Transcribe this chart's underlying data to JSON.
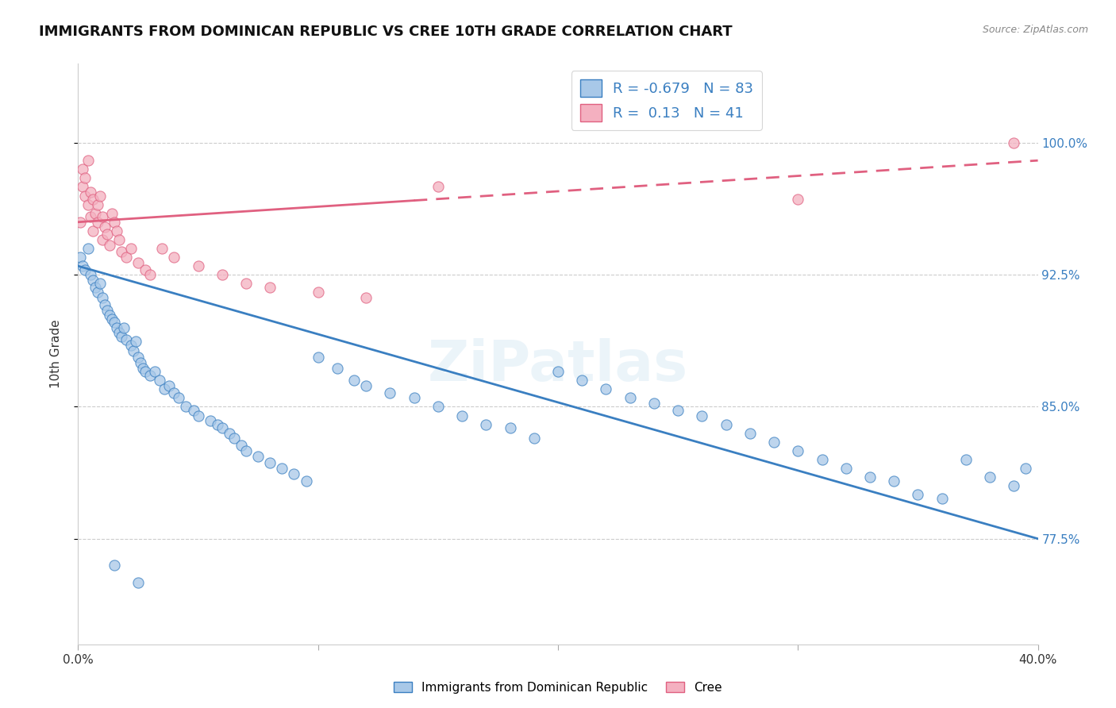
{
  "title": "IMMIGRANTS FROM DOMINICAN REPUBLIC VS CREE 10TH GRADE CORRELATION CHART",
  "source": "Source: ZipAtlas.com",
  "ylabel": "10th Grade",
  "watermark": "ZiPatlas",
  "blue_r": -0.679,
  "blue_n": 83,
  "pink_r": 0.13,
  "pink_n": 41,
  "blue_color": "#a8c8e8",
  "pink_color": "#f4b0c0",
  "blue_line_color": "#3a7fc1",
  "pink_line_color": "#e06080",
  "ytick_labels": [
    "77.5%",
    "85.0%",
    "92.5%",
    "100.0%"
  ],
  "ytick_values": [
    0.775,
    0.85,
    0.925,
    1.0
  ],
  "xlim": [
    0.0,
    0.4
  ],
  "ylim": [
    0.715,
    1.045
  ],
  "blue_scatter_x": [
    0.001,
    0.002,
    0.003,
    0.004,
    0.005,
    0.006,
    0.007,
    0.008,
    0.009,
    0.01,
    0.011,
    0.012,
    0.013,
    0.014,
    0.015,
    0.016,
    0.017,
    0.018,
    0.019,
    0.02,
    0.022,
    0.023,
    0.024,
    0.025,
    0.026,
    0.027,
    0.028,
    0.03,
    0.032,
    0.034,
    0.036,
    0.038,
    0.04,
    0.042,
    0.045,
    0.048,
    0.05,
    0.055,
    0.058,
    0.06,
    0.063,
    0.065,
    0.068,
    0.07,
    0.075,
    0.08,
    0.085,
    0.09,
    0.095,
    0.1,
    0.108,
    0.115,
    0.12,
    0.13,
    0.14,
    0.15,
    0.16,
    0.17,
    0.18,
    0.19,
    0.2,
    0.21,
    0.22,
    0.23,
    0.24,
    0.25,
    0.26,
    0.27,
    0.28,
    0.29,
    0.3,
    0.31,
    0.32,
    0.33,
    0.34,
    0.35,
    0.36,
    0.37,
    0.38,
    0.39,
    0.395,
    0.015,
    0.025
  ],
  "blue_scatter_y": [
    0.935,
    0.93,
    0.928,
    0.94,
    0.925,
    0.922,
    0.918,
    0.915,
    0.92,
    0.912,
    0.908,
    0.905,
    0.902,
    0.9,
    0.898,
    0.895,
    0.892,
    0.89,
    0.895,
    0.888,
    0.885,
    0.882,
    0.887,
    0.878,
    0.875,
    0.872,
    0.87,
    0.868,
    0.87,
    0.865,
    0.86,
    0.862,
    0.858,
    0.855,
    0.85,
    0.848,
    0.845,
    0.842,
    0.84,
    0.838,
    0.835,
    0.832,
    0.828,
    0.825,
    0.822,
    0.818,
    0.815,
    0.812,
    0.808,
    0.878,
    0.872,
    0.865,
    0.862,
    0.858,
    0.855,
    0.85,
    0.845,
    0.84,
    0.838,
    0.832,
    0.87,
    0.865,
    0.86,
    0.855,
    0.852,
    0.848,
    0.845,
    0.84,
    0.835,
    0.83,
    0.825,
    0.82,
    0.815,
    0.81,
    0.808,
    0.8,
    0.798,
    0.82,
    0.81,
    0.805,
    0.815,
    0.76,
    0.75
  ],
  "pink_scatter_x": [
    0.001,
    0.002,
    0.002,
    0.003,
    0.003,
    0.004,
    0.004,
    0.005,
    0.005,
    0.006,
    0.006,
    0.007,
    0.008,
    0.008,
    0.009,
    0.01,
    0.01,
    0.011,
    0.012,
    0.013,
    0.014,
    0.015,
    0.016,
    0.017,
    0.018,
    0.02,
    0.022,
    0.025,
    0.028,
    0.03,
    0.035,
    0.04,
    0.05,
    0.06,
    0.07,
    0.08,
    0.1,
    0.12,
    0.15,
    0.3,
    0.39
  ],
  "pink_scatter_y": [
    0.955,
    0.985,
    0.975,
    0.98,
    0.97,
    0.99,
    0.965,
    0.972,
    0.958,
    0.968,
    0.95,
    0.96,
    0.965,
    0.955,
    0.97,
    0.958,
    0.945,
    0.952,
    0.948,
    0.942,
    0.96,
    0.955,
    0.95,
    0.945,
    0.938,
    0.935,
    0.94,
    0.932,
    0.928,
    0.925,
    0.94,
    0.935,
    0.93,
    0.925,
    0.92,
    0.918,
    0.915,
    0.912,
    0.975,
    0.968,
    1.0
  ],
  "blue_line_y0": 0.93,
  "blue_line_y1": 0.775,
  "pink_line_y0": 0.955,
  "pink_line_y1": 0.99
}
